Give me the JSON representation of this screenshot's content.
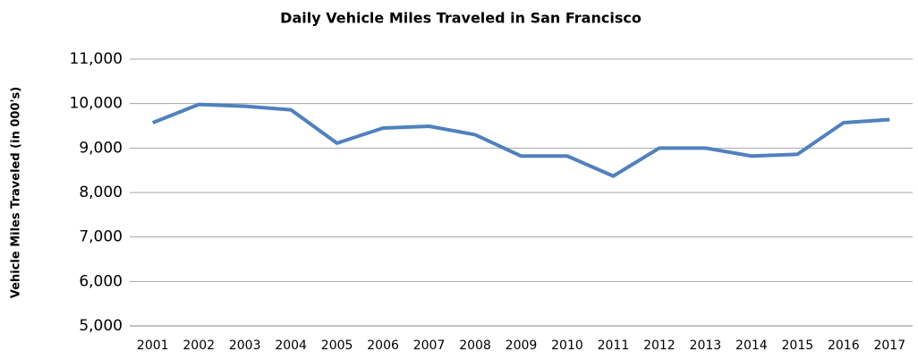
{
  "chart_data": {
    "type": "line",
    "title": "Daily Vehicle Miles Traveled in San Francisco",
    "y_label": "Vehicle Miles Traveled (in 000's)",
    "categories": [
      "2001",
      "2002",
      "2003",
      "2004",
      "2005",
      "2006",
      "2007",
      "2008",
      "2009",
      "2010",
      "2011",
      "2012",
      "2013",
      "2014",
      "2015",
      "2016",
      "2017"
    ],
    "series": [
      {
        "name": "Daily Vehicle Miles Traveled",
        "color": "#4f81bd",
        "values": [
          9570,
          9980,
          9940,
          9860,
          9110,
          9450,
          9490,
          9300,
          8820,
          8820,
          8370,
          9000,
          9000,
          8820,
          8860,
          9570,
          9640
        ]
      }
    ],
    "ylim": [
      5000,
      11000
    ],
    "yticks": [
      {
        "value": 5000,
        "label": "5,000"
      },
      {
        "value": 6000,
        "label": "6,000"
      },
      {
        "value": 7000,
        "label": "7,000"
      },
      {
        "value": 8000,
        "label": "8,000"
      },
      {
        "value": 9000,
        "label": "9,000"
      },
      {
        "value": 10000,
        "label": "10,000"
      },
      {
        "value": 11000,
        "label": "11,000"
      }
    ],
    "grid": true
  }
}
